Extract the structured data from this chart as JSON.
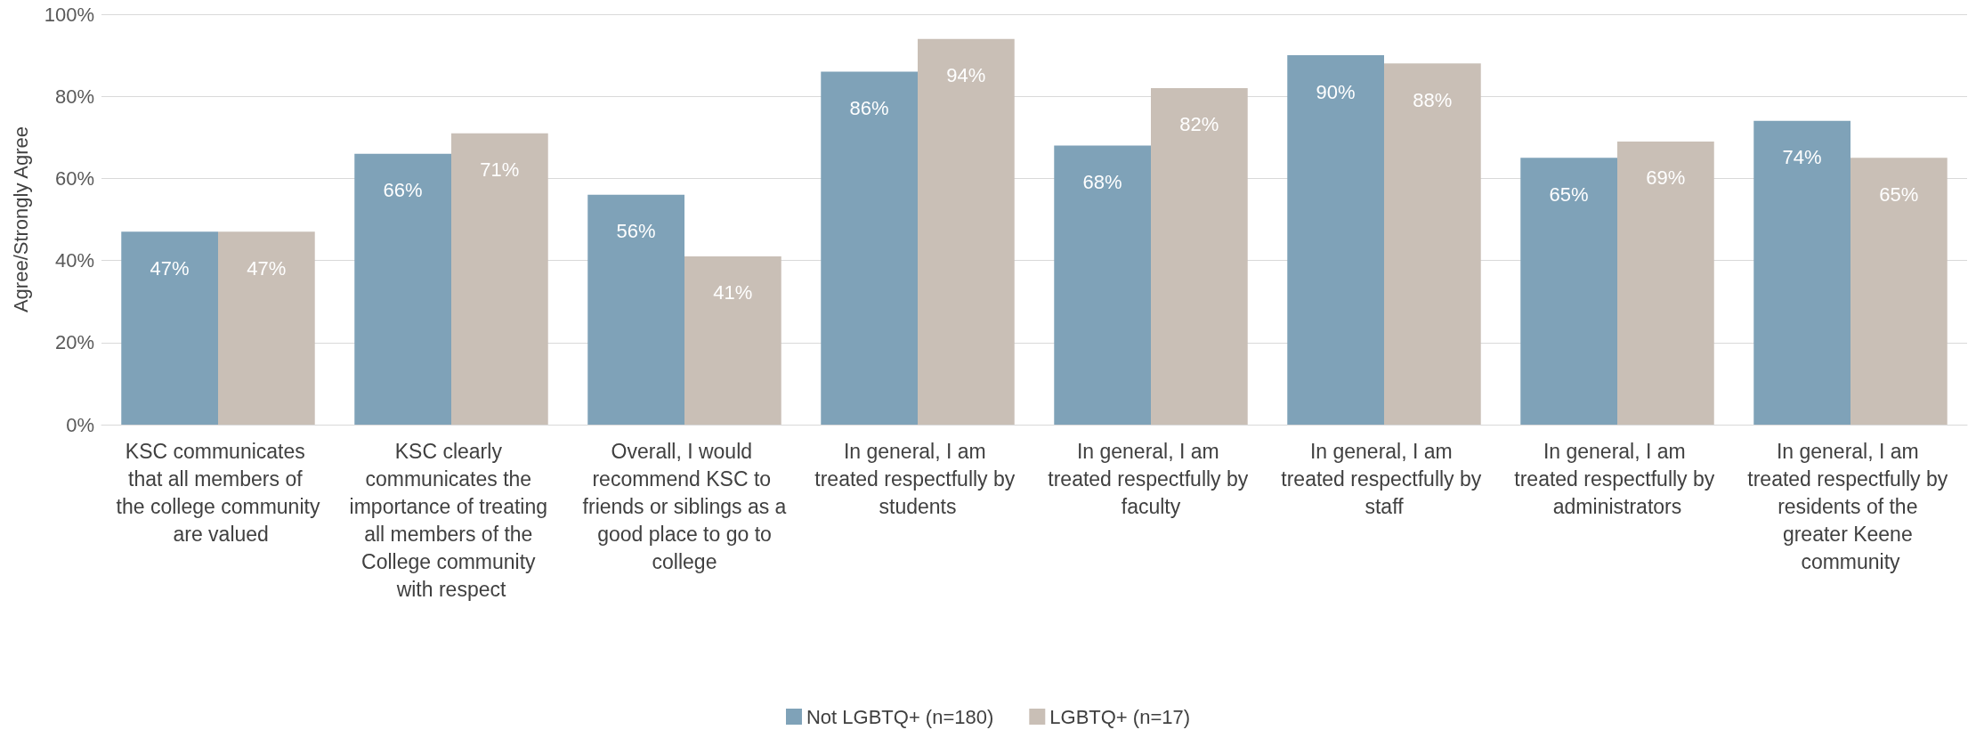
{
  "chart_data": {
    "type": "bar",
    "ylabel": "Agree/Strongly Agree",
    "categories": [
      "KSC communicates that all members of the college community are valued",
      "KSC clearly communicates the importance of treating all members of the College community with respect",
      "Overall, I would recommend KSC to friends or siblings as a good place to go to college",
      "In general, I am treated respectfully by students",
      "In general, I am treated respectfully by faculty",
      "In general, I am treated respectfully by staff",
      "In general, I am treated respectfully by administrators",
      "In general, I am treated respectfully by residents of the greater Keene community"
    ],
    "series": [
      {
        "name": "Not LGBTQ+ (n=180)",
        "color": "#7fa2b8",
        "values": [
          47,
          66,
          56,
          86,
          68,
          90,
          65,
          74
        ],
        "value_labels": [
          "47%",
          "66%",
          "56%",
          "86%",
          "68%",
          "90%",
          "65%",
          "74%"
        ]
      },
      {
        "name": "LGBTQ+ (n=17)",
        "color": "#c9bfb6",
        "values": [
          47,
          71,
          41,
          94,
          82,
          88,
          69,
          65
        ],
        "value_labels": [
          "47%",
          "71%",
          "41%",
          "94%",
          "82%",
          "88%",
          "69%",
          "65%"
        ]
      }
    ],
    "ylim": [
      0,
      100
    ],
    "yticks": [
      {
        "value": 0,
        "label": "0%"
      },
      {
        "value": 20,
        "label": "20%"
      },
      {
        "value": 40,
        "label": "40%"
      },
      {
        "value": 60,
        "label": "60%"
      },
      {
        "value": 80,
        "label": "80%"
      },
      {
        "value": 100,
        "label": "100%"
      }
    ],
    "grid": "y",
    "legend": "bottom"
  }
}
